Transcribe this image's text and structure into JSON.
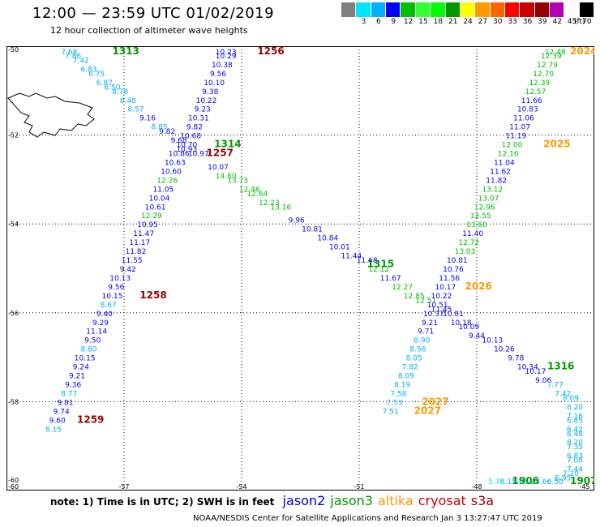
{
  "header": {
    "title": "12:00 — 23:59 UTC 01/02/2019",
    "subtitle": "12 hour collection of altimeter wave heights"
  },
  "legend": {
    "colors": [
      "#808080",
      "#00e5ff",
      "#00b0ff",
      "#0000ff",
      "#00c000",
      "#33ff33",
      "#00ff00",
      "#009900",
      "#ffff00",
      "#ff9900",
      "#ff6600",
      "#ff0000",
      "#cc0000",
      "#990000",
      "#b300b3",
      "#ffffff",
      "#000000"
    ],
    "labels": [
      "3",
      "6",
      "9",
      "12",
      "15",
      "18",
      "21",
      "24",
      "27",
      "30",
      "33",
      "36",
      "39",
      "42",
      "45",
      "70"
    ],
    "unit": "(ft)"
  },
  "axis": {
    "x_ticks": [
      "-60",
      "-57",
      "-54",
      "-51",
      "-48",
      "-45"
    ],
    "y_ticks": [
      "-50",
      "-52",
      "-54",
      "-56",
      "-58",
      "-60"
    ]
  },
  "note": {
    "text": "note:  1) Time is in UTC; 2) SWH is in feet",
    "satellites": [
      {
        "name": "jason2",
        "color": "#0000cc"
      },
      {
        "name": "jason3",
        "color": "#009900"
      },
      {
        "name": "altika",
        "color": "#ff9900"
      },
      {
        "name": "cryosat",
        "color": "#cc0000"
      },
      {
        "name": "s3a",
        "color": "#990000"
      }
    ]
  },
  "footer": "NOAA/NESDIS Center for Satellite Applications and Research   Jan  3 13:27:47 UTC 2019",
  "chart_data": {
    "type": "scatter",
    "xlim": [
      -60,
      -45
    ],
    "ylim": [
      -60,
      -50
    ],
    "xlabel": "",
    "ylabel": "",
    "grid": true,
    "tracks": [
      {
        "points": [
          [
            -58.4,
            -50.0,
            "7.68"
          ],
          [
            -58.3,
            -50.2,
            "7.86"
          ],
          [
            -58.1,
            -50.3,
            "7.42"
          ],
          [
            -57.9,
            -50.5,
            "6.83"
          ],
          [
            -57.7,
            -50.6,
            "6.75"
          ],
          [
            -57.5,
            -50.8,
            "6.87"
          ],
          [
            -57.3,
            -50.9,
            "6.50"
          ],
          [
            -57.1,
            -51.0,
            "8.78"
          ],
          [
            -56.9,
            -51.2,
            "8.48"
          ],
          [
            -56.7,
            -51.4,
            "8.57"
          ],
          [
            -56.4,
            -51.6,
            "9.16"
          ],
          [
            -56.1,
            -51.8,
            "8.85"
          ],
          [
            -55.9,
            -51.9,
            "9.82"
          ],
          [
            -55.6,
            -52.1,
            "9.68"
          ],
          [
            -55.4,
            -52.3,
            "10.93"
          ],
          [
            -55.1,
            -52.4,
            "10.97"
          ],
          [
            -54.6,
            -52.7,
            "10.07"
          ],
          [
            -54.4,
            -52.9,
            "14.60"
          ],
          [
            -54.1,
            -53.0,
            "13.73"
          ],
          [
            -53.8,
            -53.2,
            "12.46"
          ],
          [
            -53.6,
            -53.3,
            "12.64"
          ],
          [
            -53.3,
            -53.5,
            "12.23"
          ],
          [
            -53.0,
            -53.6,
            "13.16"
          ],
          [
            -52.6,
            -53.9,
            "9.96"
          ],
          [
            -52.2,
            -54.1,
            "10.81"
          ],
          [
            -51.8,
            -54.3,
            "10.84"
          ],
          [
            -51.5,
            -54.5,
            "10.01"
          ],
          [
            -51.2,
            -54.7,
            "11.44"
          ],
          [
            -50.8,
            -54.8,
            "11.68"
          ],
          [
            -50.5,
            -55.0,
            "12.12"
          ],
          [
            -50.2,
            -55.2,
            "11.67"
          ],
          [
            -49.9,
            -55.4,
            "12.27"
          ],
          [
            -49.6,
            -55.6,
            "12.85"
          ],
          [
            -49.3,
            -55.7,
            "12.51"
          ],
          [
            -48.9,
            -55.9,
            "11.45"
          ],
          [
            -48.6,
            -56.0,
            "10.81"
          ],
          [
            -48.4,
            -56.2,
            "10.18"
          ],
          [
            -48.2,
            -56.3,
            "10.09"
          ],
          [
            -48.0,
            -56.5,
            "9.44"
          ],
          [
            -47.6,
            -56.6,
            "10.13"
          ],
          [
            -47.3,
            -56.8,
            "10.26"
          ],
          [
            -47.0,
            -57.0,
            "9.78"
          ],
          [
            -46.7,
            -57.2,
            "10.34"
          ],
          [
            -46.5,
            -57.3,
            "10.17"
          ],
          [
            -46.3,
            -57.5,
            "9.06"
          ],
          [
            -46.0,
            -57.6,
            "7.77"
          ],
          [
            -45.8,
            -57.8,
            "7.42"
          ],
          [
            -45.6,
            -57.9,
            "8.09"
          ],
          [
            -45.4,
            -58.1,
            "8.20"
          ],
          [
            -45.0,
            -58.3,
            "7.16"
          ],
          [
            -44.8,
            -58.4,
            "6.85"
          ],
          [
            -44.6,
            -58.6,
            "6.42"
          ],
          [
            -44.5,
            -58.7,
            "6.48"
          ],
          [
            -44.6,
            -58.9,
            "8.20"
          ],
          [
            -44.8,
            -59.0,
            "7.35"
          ],
          [
            -45.0,
            -59.2,
            "6.83"
          ],
          [
            -45.2,
            -59.3,
            "7.08"
          ],
          [
            -45.4,
            -59.5,
            "7.44"
          ],
          [
            -45.6,
            -59.6,
            "7.20"
          ],
          [
            -45.8,
            -59.7,
            "6.95"
          ],
          [
            -46.0,
            -59.9,
            "6.50"
          ],
          [
            -46.3,
            -60.1,
            "7.66"
          ],
          [
            -46.6,
            -60.3,
            "6.23"
          ],
          [
            -46.9,
            -60.4,
            "5.85"
          ],
          [
            -47.2,
            -60.5,
            "6.11"
          ],
          [
            -47.5,
            -60.6,
            "5.78"
          ]
        ],
        "time_labels": [
          {
            "text": "1313",
            "x": -57.3,
            "y": -50.0,
            "color": "#009900"
          },
          {
            "text": "1314",
            "x": -54.7,
            "y": -52.2,
            "color": "#009900"
          },
          {
            "text": "1315",
            "x": -50.8,
            "y": -54.9,
            "color": "#009900"
          },
          {
            "text": "1316",
            "x": -46.2,
            "y": -57.2,
            "color": "#009900"
          },
          {
            "text": "1907",
            "x": -45.4,
            "y": -59.8,
            "color": "#009900"
          },
          {
            "text": "1906",
            "x": -47.1,
            "y": -60.4,
            "color": "#009900"
          }
        ]
      },
      {
        "points": [
          [
            -54.4,
            -50.0,
            "10.23"
          ],
          [
            -54.4,
            -50.2,
            "10.29"
          ],
          [
            -54.5,
            -50.4,
            "10.38"
          ],
          [
            -54.6,
            -50.6,
            "9.56"
          ],
          [
            -54.7,
            -50.8,
            "10.10"
          ],
          [
            -54.8,
            -51.0,
            "9.38"
          ],
          [
            -54.9,
            -51.2,
            "10.22"
          ],
          [
            -55.0,
            -51.4,
            "9.23"
          ],
          [
            -55.1,
            -51.6,
            "10.31"
          ],
          [
            -55.2,
            -51.8,
            "9.82"
          ],
          [
            -55.3,
            -52.0,
            "10.68"
          ],
          [
            -55.4,
            -52.2,
            "10.70"
          ],
          [
            -55.6,
            -52.4,
            "10.86"
          ],
          [
            -55.7,
            -52.6,
            "10.63"
          ],
          [
            -55.8,
            -52.8,
            "10.60"
          ],
          [
            -55.9,
            -53.0,
            "12.26"
          ],
          [
            -56.0,
            -53.2,
            "11.05"
          ],
          [
            -56.1,
            -53.4,
            "10.04"
          ],
          [
            -56.2,
            -53.6,
            "10.61"
          ],
          [
            -56.3,
            -53.8,
            "12.29"
          ],
          [
            -56.4,
            -54.0,
            "10.95"
          ],
          [
            -56.5,
            -54.2,
            "11.47"
          ],
          [
            -56.6,
            -54.4,
            "11.17"
          ],
          [
            -56.7,
            -54.6,
            "11.82"
          ],
          [
            -56.8,
            -54.8,
            "11.55"
          ],
          [
            -56.9,
            -55.0,
            "9.42"
          ],
          [
            -57.1,
            -55.2,
            "10.13"
          ],
          [
            -57.2,
            -55.4,
            "9.56"
          ],
          [
            -57.3,
            -55.6,
            "10.15"
          ],
          [
            -57.4,
            -55.8,
            "8.67"
          ],
          [
            -57.5,
            -56.0,
            "9.40"
          ],
          [
            -57.6,
            -56.2,
            "9.29"
          ],
          [
            -57.7,
            -56.4,
            "11.14"
          ],
          [
            -57.8,
            -56.6,
            "9.50"
          ],
          [
            -57.9,
            -56.8,
            "8.80"
          ],
          [
            -58.0,
            -57.0,
            "10.15"
          ],
          [
            -58.1,
            -57.2,
            "9.24"
          ],
          [
            -58.2,
            -57.4,
            "9.21"
          ],
          [
            -58.3,
            -57.6,
            "9.36"
          ],
          [
            -58.4,
            -57.8,
            "8.77"
          ],
          [
            -58.5,
            -58.0,
            "9.81"
          ],
          [
            -58.6,
            -58.2,
            "9.74"
          ],
          [
            -58.7,
            -58.4,
            "9.60"
          ],
          [
            -58.8,
            -58.6,
            "8.15"
          ]
        ],
        "time_labels": [
          {
            "text": "1256",
            "x": -53.6,
            "y": -50.0,
            "color": "#990000"
          },
          {
            "text": "1257",
            "x": -54.9,
            "y": -52.4,
            "color": "#990000"
          },
          {
            "text": "1258",
            "x": -56.6,
            "y": -55.6,
            "color": "#990000"
          },
          {
            "text": "1259",
            "x": -58.2,
            "y": -58.4,
            "color": "#990000"
          }
        ]
      },
      {
        "points": [
          [
            -46.0,
            -50.0,
            "12.48"
          ],
          [
            -46.1,
            -50.2,
            "12.39"
          ],
          [
            -46.2,
            -50.4,
            "12.79"
          ],
          [
            -46.3,
            -50.6,
            "12.70"
          ],
          [
            -46.4,
            -50.8,
            "12.39"
          ],
          [
            -46.5,
            -51.0,
            "12.57"
          ],
          [
            -46.6,
            -51.2,
            "11.66"
          ],
          [
            -46.7,
            -51.4,
            "10.83"
          ],
          [
            -46.8,
            -51.6,
            "11.06"
          ],
          [
            -46.9,
            -51.8,
            "11.07"
          ],
          [
            -47.0,
            -52.0,
            "11.19"
          ],
          [
            -47.1,
            -52.2,
            "12.00"
          ],
          [
            -47.2,
            -52.4,
            "12.16"
          ],
          [
            -47.3,
            -52.6,
            "11.04"
          ],
          [
            -47.4,
            -52.8,
            "11.62"
          ],
          [
            -47.5,
            -53.0,
            "11.82"
          ],
          [
            -47.6,
            -53.2,
            "13.12"
          ],
          [
            -47.7,
            -53.4,
            "13.07"
          ],
          [
            -47.8,
            -53.6,
            "12.96"
          ],
          [
            -47.9,
            -53.8,
            "12.55"
          ],
          [
            -48.0,
            -54.0,
            "13.60"
          ],
          [
            -48.1,
            -54.2,
            "11.40"
          ],
          [
            -48.2,
            -54.4,
            "12.72"
          ],
          [
            -48.3,
            -54.6,
            "13.03"
          ],
          [
            -48.5,
            -54.8,
            "10.81"
          ],
          [
            -48.6,
            -55.0,
            "10.76"
          ],
          [
            -48.7,
            -55.2,
            "11.56"
          ],
          [
            -48.8,
            -55.4,
            "10.17"
          ],
          [
            -48.9,
            -55.6,
            "10.22"
          ],
          [
            -49.0,
            -55.8,
            "10.51"
          ],
          [
            -49.1,
            -56.0,
            "10.37"
          ],
          [
            -49.2,
            -56.2,
            "9.21"
          ],
          [
            -49.3,
            -56.4,
            "9.71"
          ],
          [
            -49.4,
            -56.6,
            "8.90"
          ],
          [
            -49.5,
            -56.8,
            "8.56"
          ],
          [
            -49.6,
            -57.0,
            "8.05"
          ],
          [
            -49.7,
            -57.2,
            "7.82"
          ],
          [
            -49.8,
            -57.4,
            "8.09"
          ],
          [
            -49.9,
            -57.6,
            "8.19"
          ],
          [
            -50.0,
            -57.8,
            "7.58"
          ],
          [
            -50.1,
            -58.0,
            "7.53"
          ],
          [
            -50.2,
            -58.2,
            "7.51"
          ]
        ],
        "time_labels": [
          {
            "text": "2024",
            "x": -45.2,
            "y": -50.0,
            "color": "#ff9900"
          },
          {
            "text": "2025",
            "x": -46.3,
            "y": -52.2,
            "color": "#ff9900"
          },
          {
            "text": "2026",
            "x": -48.3,
            "y": -55.4,
            "color": "#ff9900"
          },
          {
            "text": "2027",
            "x": -49.4,
            "y": -58.0,
            "color": "#ff9900"
          },
          {
            "text": "2027",
            "x": -49.6,
            "y": -58.2,
            "color": "#ff9900"
          }
        ]
      }
    ]
  }
}
